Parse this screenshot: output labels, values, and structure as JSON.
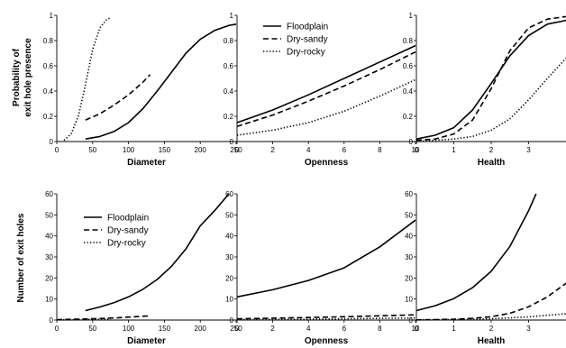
{
  "figure": {
    "row_labels": [
      [
        "Probability of",
        "exit hole presence"
      ],
      [
        "Number of exit holes"
      ]
    ]
  },
  "legend": {
    "entries": [
      "Floodplain",
      "Dry-sandy",
      "Dry-rocky"
    ],
    "placement": [
      "top-left of top-middle panel",
      "top-left of bottom-left panel"
    ]
  },
  "chart_data": [
    {
      "type": "line",
      "row": 0,
      "col": 0,
      "xlabel": "Diameter",
      "ylabel": "",
      "xlim": [
        0,
        250
      ],
      "ylim": [
        0,
        1
      ],
      "xticks": [
        "0",
        "50",
        "100",
        "150",
        "200",
        "250"
      ],
      "yticks": [
        "0",
        "0.2",
        "0.4",
        "0.6",
        "0.8",
        "1"
      ],
      "series": [
        {
          "name": "Floodplain",
          "x": [
            40,
            60,
            80,
            100,
            120,
            140,
            160,
            180,
            200,
            220,
            240,
            250
          ],
          "y": [
            0.02,
            0.04,
            0.08,
            0.15,
            0.26,
            0.4,
            0.55,
            0.7,
            0.81,
            0.88,
            0.92,
            0.93
          ]
        },
        {
          "name": "Dry-sandy",
          "x": [
            40,
            60,
            80,
            100,
            120,
            130
          ],
          "y": [
            0.17,
            0.22,
            0.29,
            0.37,
            0.47,
            0.53
          ]
        },
        {
          "name": "Dry-rocky",
          "x": [
            10,
            20,
            30,
            40,
            50,
            60,
            70,
            75
          ],
          "y": [
            0.01,
            0.06,
            0.2,
            0.45,
            0.73,
            0.9,
            0.97,
            0.98
          ]
        }
      ]
    },
    {
      "type": "line",
      "row": 0,
      "col": 1,
      "xlabel": "Openness",
      "ylabel": "",
      "xlim": [
        0,
        10
      ],
      "ylim": [
        0,
        1
      ],
      "xticks": [
        "0",
        "2",
        "4",
        "6",
        "8",
        "10"
      ],
      "yticks": [
        "0",
        "0.2",
        "0.4",
        "0.6",
        "0.8",
        "1"
      ],
      "series": [
        {
          "name": "Floodplain",
          "x": [
            0,
            2,
            4,
            6,
            8,
            10
          ],
          "y": [
            0.15,
            0.25,
            0.37,
            0.5,
            0.63,
            0.76
          ]
        },
        {
          "name": "Dry-sandy",
          "x": [
            0,
            2,
            4,
            6,
            8,
            10
          ],
          "y": [
            0.12,
            0.21,
            0.32,
            0.44,
            0.57,
            0.71
          ]
        },
        {
          "name": "Dry-rocky",
          "x": [
            0,
            2,
            4,
            6,
            8,
            10
          ],
          "y": [
            0.05,
            0.09,
            0.15,
            0.24,
            0.36,
            0.49
          ]
        }
      ]
    },
    {
      "type": "line",
      "row": 0,
      "col": 2,
      "xlabel": "Health",
      "ylabel": "",
      "xlim": [
        0,
        4
      ],
      "ylim": [
        0,
        1
      ],
      "xticks": [
        "0",
        "1",
        "2",
        "3"
      ],
      "yticks": [
        "0",
        "0.2",
        "0.4",
        "0.6",
        "0.8",
        "1"
      ],
      "series": [
        {
          "name": "Floodplain",
          "x": [
            0,
            0.5,
            1,
            1.5,
            2,
            2.5,
            3,
            3.5,
            4
          ],
          "y": [
            0.02,
            0.05,
            0.11,
            0.25,
            0.46,
            0.68,
            0.84,
            0.93,
            0.96
          ]
        },
        {
          "name": "Dry-sandy",
          "x": [
            0,
            0.5,
            1,
            1.5,
            2,
            2.5,
            3,
            3.5,
            4
          ],
          "y": [
            0.01,
            0.02,
            0.06,
            0.17,
            0.42,
            0.72,
            0.9,
            0.97,
            0.99
          ]
        },
        {
          "name": "Dry-rocky",
          "x": [
            0,
            0.5,
            1,
            1.5,
            2,
            2.5,
            3,
            3.5,
            4
          ],
          "y": [
            0.0,
            0.01,
            0.02,
            0.04,
            0.09,
            0.18,
            0.33,
            0.5,
            0.66
          ]
        }
      ]
    },
    {
      "type": "line",
      "row": 1,
      "col": 0,
      "xlabel": "Diameter",
      "ylabel": "",
      "xlim": [
        0,
        250
      ],
      "ylim": [
        0,
        60
      ],
      "xticks": [
        "0",
        "50",
        "100",
        "150",
        "200",
        "250"
      ],
      "yticks": [
        "0",
        "10",
        "20",
        "30",
        "40",
        "50",
        "60"
      ],
      "series": [
        {
          "name": "Floodplain",
          "x": [
            40,
            60,
            80,
            100,
            120,
            140,
            160,
            180,
            200,
            220,
            240
          ],
          "y": [
            4.5,
            6.2,
            8.3,
            11.0,
            14.6,
            19.3,
            25.6,
            33.8,
            44.8,
            52.0,
            60.0
          ]
        },
        {
          "name": "Dry-sandy",
          "x": [
            0,
            40,
            80,
            130
          ],
          "y": [
            0.2,
            0.5,
            1.0,
            2.0
          ]
        },
        {
          "name": "Dry-rocky",
          "x": [
            0,
            20,
            40,
            60,
            75
          ],
          "y": [
            0.05,
            0.1,
            0.2,
            0.35,
            0.5
          ]
        }
      ]
    },
    {
      "type": "line",
      "row": 1,
      "col": 1,
      "xlabel": "Openness",
      "ylabel": "",
      "xlim": [
        0,
        10
      ],
      "ylim": [
        0,
        60
      ],
      "xticks": [
        "0",
        "2",
        "4",
        "6",
        "8",
        "10"
      ],
      "yticks": [
        "0",
        "10",
        "20",
        "30",
        "40",
        "50",
        "60"
      ],
      "series": [
        {
          "name": "Floodplain",
          "x": [
            0,
            2,
            4,
            6,
            8,
            10
          ],
          "y": [
            11.0,
            14.4,
            18.8,
            24.8,
            34.8,
            47.5
          ]
        },
        {
          "name": "Dry-sandy",
          "x": [
            0,
            2,
            4,
            6,
            8,
            10
          ],
          "y": [
            0.6,
            0.9,
            1.2,
            1.6,
            2.0,
            2.5
          ]
        },
        {
          "name": "Dry-rocky",
          "x": [
            0,
            2,
            4,
            6,
            8,
            10
          ],
          "y": [
            0.2,
            0.3,
            0.4,
            0.6,
            0.8,
            1.0
          ]
        }
      ]
    },
    {
      "type": "line",
      "row": 1,
      "col": 2,
      "xlabel": "Health",
      "ylabel": "",
      "xlim": [
        0,
        4
      ],
      "ylim": [
        0,
        60
      ],
      "xticks": [
        "0",
        "1",
        "2",
        "3"
      ],
      "yticks": [
        "0",
        "10",
        "20",
        "30",
        "40",
        "50",
        "60"
      ],
      "series": [
        {
          "name": "Floodplain",
          "x": [
            0,
            0.5,
            1,
            1.5,
            2,
            2.5,
            3,
            3.2
          ],
          "y": [
            4.5,
            6.8,
            10.2,
            15.4,
            23.2,
            35.0,
            52.0,
            60.0
          ]
        },
        {
          "name": "Dry-sandy",
          "x": [
            0,
            0.5,
            1,
            1.5,
            2,
            2.5,
            3,
            3.5,
            4
          ],
          "y": [
            0.1,
            0.2,
            0.4,
            0.8,
            1.6,
            3.2,
            6.3,
            11.0,
            17.5
          ]
        },
        {
          "name": "Dry-rocky",
          "x": [
            0,
            1,
            2,
            3,
            4
          ],
          "y": [
            0.05,
            0.2,
            0.6,
            1.5,
            3.0
          ]
        }
      ]
    }
  ]
}
